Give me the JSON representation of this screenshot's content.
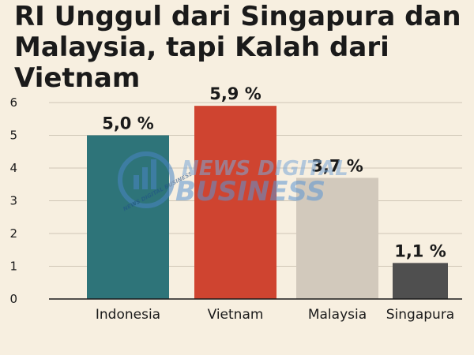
{
  "title": "RI Unggul dari Singapura dan Malaysia, tapi Kalah dari Vietnam",
  "watermark": {
    "line1": "NEWS DIGITAL",
    "line2": "BUSINESS",
    "badge": "NEWS DIGITAL BUSINESS"
  },
  "chart_data": {
    "type": "bar",
    "categories": [
      "Indonesia",
      "Vietnam",
      "Malaysia",
      "Singapura"
    ],
    "values": [
      5.0,
      5.9,
      3.7,
      1.1
    ],
    "value_labels": [
      "5,0 %",
      "5,9 %",
      "3,7 %",
      "1,1 %"
    ],
    "colors": [
      "#2e7479",
      "#cf4430",
      "#d2c9bc",
      "#4f4f4f"
    ],
    "ylim": [
      0,
      6
    ],
    "yticks": [
      "0",
      "1",
      "2",
      "3",
      "4",
      "5",
      "6"
    ],
    "grid": true,
    "xlabel": "",
    "ylabel": ""
  }
}
